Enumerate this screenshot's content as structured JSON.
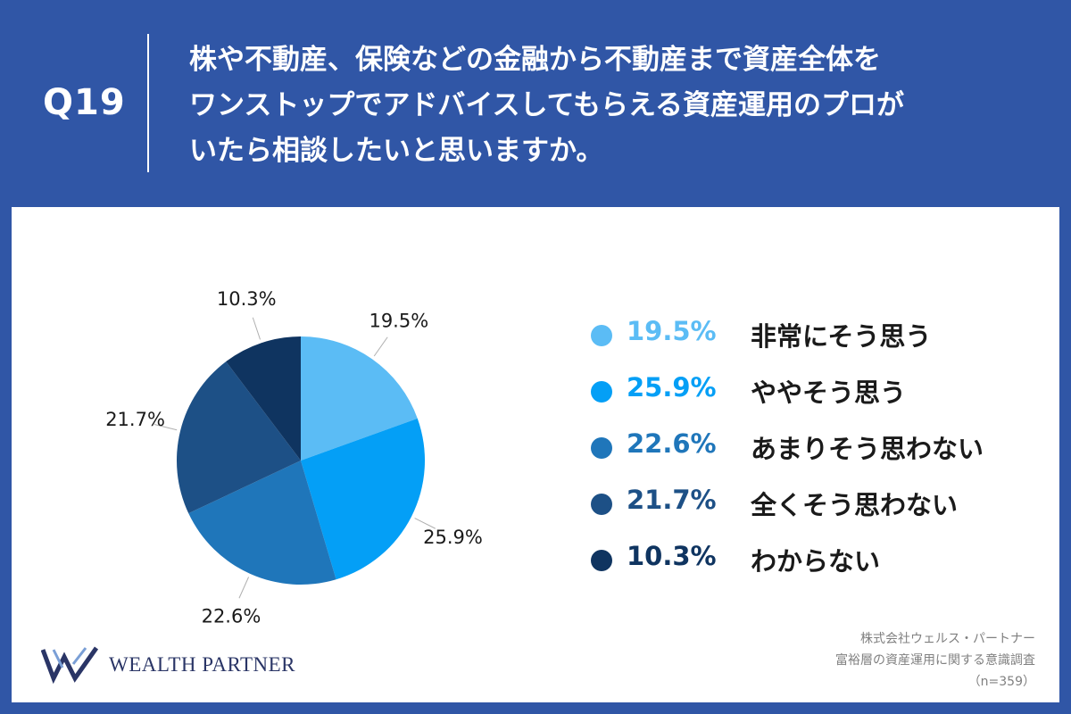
{
  "header": {
    "question_number": "Q19",
    "question_lines": [
      "株や不動産、保険などの金融から不動産まで資産全体を",
      "ワンストップでアドバイスしてもらえる資産運用のプロが",
      "いたら相談したいと思いますか。"
    ]
  },
  "colors": {
    "background": "#3056a6",
    "panel": "#ffffff"
  },
  "chart_data": {
    "type": "pie",
    "start_angle_deg": 0,
    "direction": "clockwise",
    "slices": [
      {
        "label": "非常にそう思う",
        "value": 19.5,
        "display": "19.5%",
        "color": "#5bbcf5"
      },
      {
        "label": "ややそう思う",
        "value": 25.9,
        "display": "25.9%",
        "color": "#049ff6"
      },
      {
        "label": "あまりそう思わない",
        "value": 22.6,
        "display": "22.6%",
        "color": "#1f76ba"
      },
      {
        "label": "全くそう思わない",
        "value": 21.7,
        "display": "21.7%",
        "color": "#1d5086"
      },
      {
        "label": "わからない",
        "value": 10.3,
        "display": "10.3%",
        "color": "#0f3460"
      }
    ],
    "legend_position": "right"
  },
  "footer": {
    "company": "株式会社ウェルス・パートナー",
    "survey": "富裕層の資産運用に関する意識調査",
    "sample": "（n=359）"
  },
  "logo": {
    "text": "WEALTH PARTNER",
    "icon": "wp-logo-icon"
  }
}
